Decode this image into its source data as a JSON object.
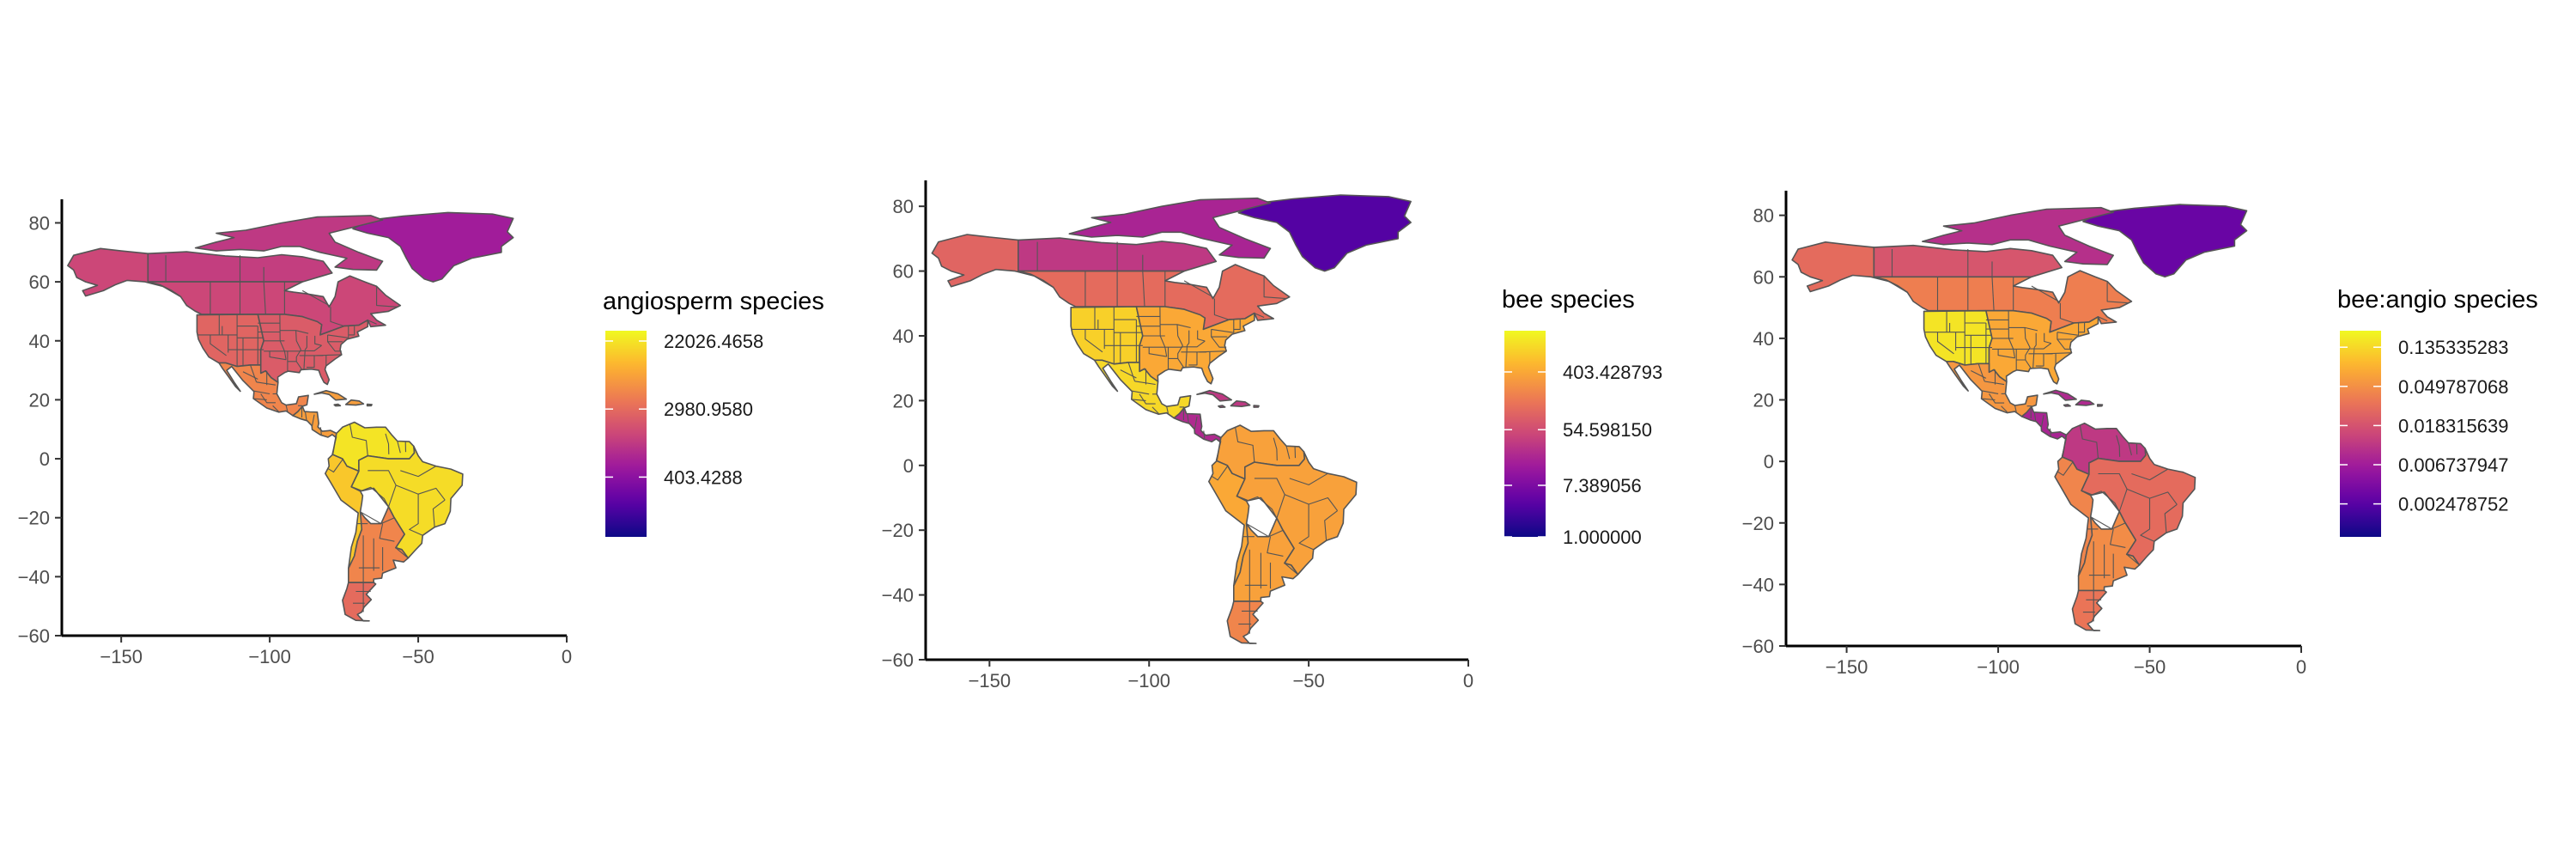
{
  "chart_data": [
    {
      "type": "choropleth-map",
      "legend": {
        "title": "angiosperm species",
        "position": "right",
        "labels": [
          "22026.4658",
          "2980.9580",
          "403.4288"
        ],
        "scale": "log"
      },
      "x_ticks": [
        "−150",
        "−100",
        "−50",
        "0"
      ],
      "y_ticks": [
        "80",
        "60",
        "40",
        "20",
        "0",
        "−20",
        "−40",
        "−60"
      ],
      "xlim": [
        -170,
        0
      ],
      "ylim": [
        -60,
        88
      ],
      "levels": {
        "greenland": 0.35,
        "arctic_islands": 0.45,
        "canada_north": 0.47,
        "canada_south": 0.5,
        "alaska": 0.5,
        "us_east": 0.57,
        "us_west": 0.6,
        "mexico": 0.7,
        "central_america": 0.77,
        "caribbean": 0.77,
        "brazil": 0.93,
        "south_america_north": 0.95,
        "south_america_west": 0.88,
        "south_america_south": 0.7,
        "patagonia": 0.62
      }
    },
    {
      "type": "choropleth-map",
      "legend": {
        "title": "bee species",
        "position": "right",
        "labels": [
          "403.428793",
          "54.598150",
          "7.389056",
          "1.000000"
        ],
        "scale": "log"
      },
      "x_ticks": [
        "−150",
        "−100",
        "−50",
        "0"
      ],
      "y_ticks": [
        "80",
        "60",
        "40",
        "20",
        "0",
        "−20",
        "−40",
        "−60"
      ],
      "xlim": [
        -170,
        0
      ],
      "ylim": [
        -60,
        88
      ],
      "levels": {
        "greenland": 0.15,
        "arctic_islands": 0.38,
        "canada_north": 0.45,
        "canada_south": 0.62,
        "alaska": 0.6,
        "us_east": 0.8,
        "us_west": 0.9,
        "mexico": 0.92,
        "central_america": 0.4,
        "caribbean": 0.45,
        "brazil": 0.78,
        "south_america_north": 0.78,
        "south_america_west": 0.8,
        "south_america_south": 0.78,
        "patagonia": 0.7
      }
    },
    {
      "type": "choropleth-map",
      "legend": {
        "title": "bee:angio species",
        "position": "right",
        "labels": [
          "0.135335283",
          "0.049787068",
          "0.018315639",
          "0.006737947",
          "0.002478752"
        ],
        "scale": "log"
      },
      "x_ticks": [
        "−150",
        "−100",
        "−50",
        "0"
      ],
      "y_ticks": [
        "80",
        "60",
        "40",
        "20",
        "0",
        "−20",
        "−40",
        "−60"
      ],
      "xlim": [
        -170,
        0
      ],
      "ylim": [
        -60,
        88
      ],
      "levels": {
        "greenland": 0.2,
        "arctic_islands": 0.42,
        "canada_north": 0.55,
        "canada_south": 0.68,
        "alaska": 0.62,
        "us_east": 0.8,
        "us_west": 0.95,
        "mexico": 0.75,
        "central_america": 0.38,
        "caribbean": 0.4,
        "brazil": 0.62,
        "south_america_north": 0.45,
        "south_america_west": 0.7,
        "south_america_south": 0.72,
        "patagonia": 0.65
      }
    }
  ],
  "colors": {
    "palette": [
      "#0d0887",
      "#5c01a6",
      "#9c179e",
      "#cc4778",
      "#ed7953",
      "#fdb42f",
      "#f0f921"
    ],
    "land_border": "#555555",
    "axis": "#000000"
  }
}
